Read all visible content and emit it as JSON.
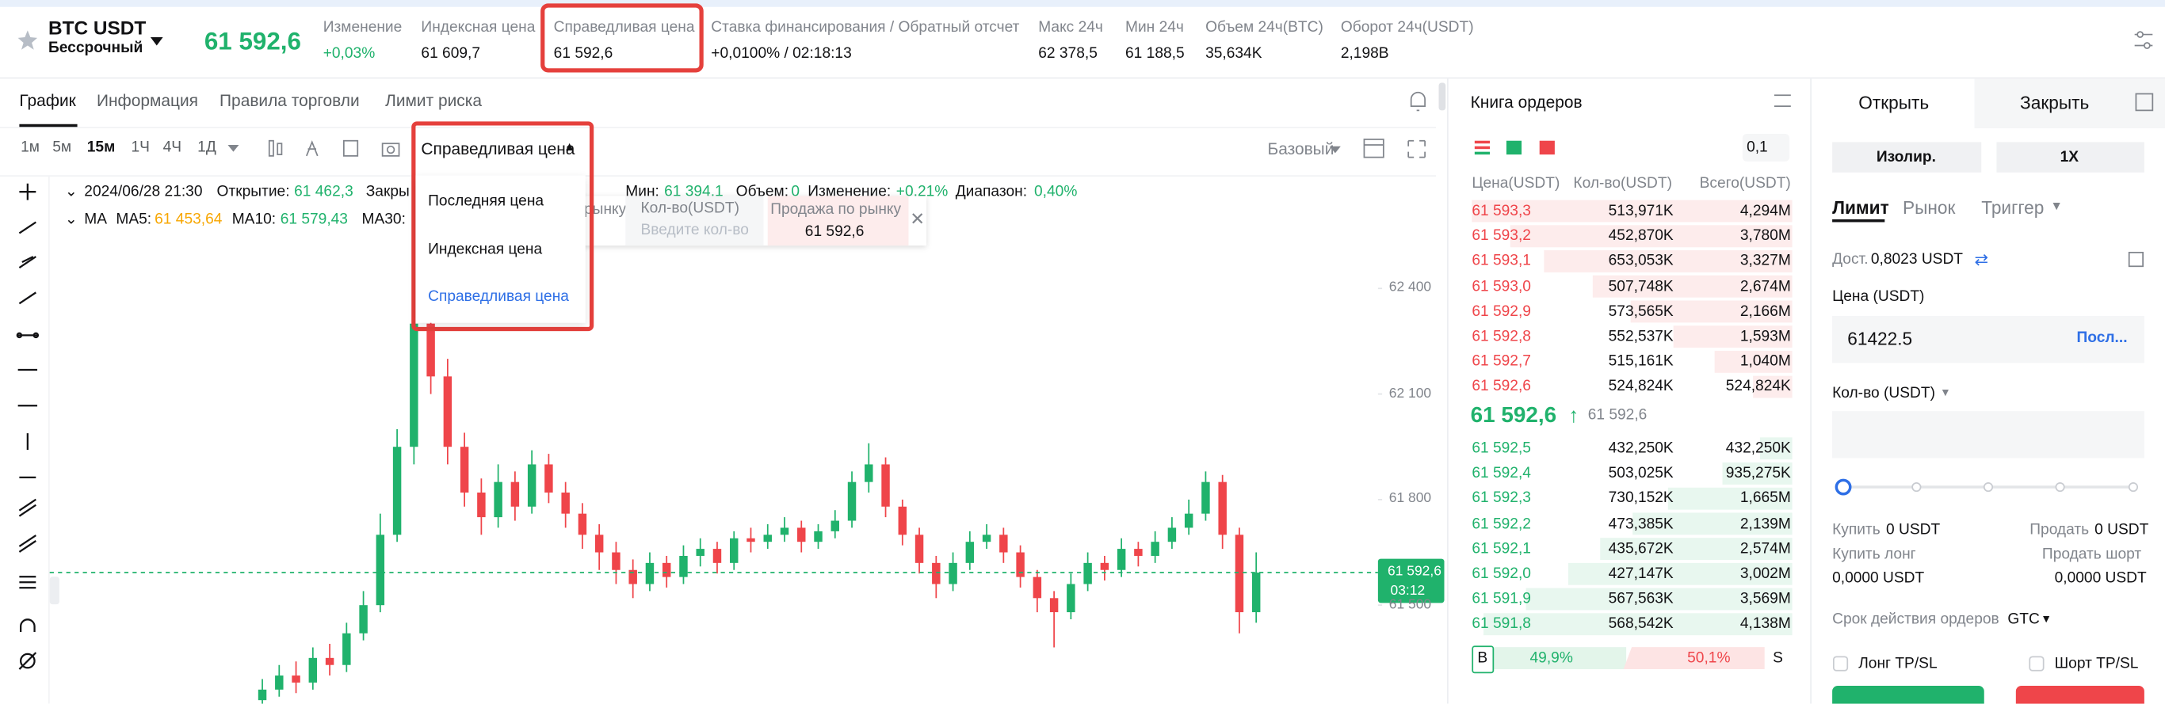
{
  "header": {
    "symbol": "BTC USDT",
    "contract": "Бессрочный",
    "last_price": "61 592,6",
    "stats": [
      {
        "label": "Изменение",
        "value": "+0,03%"
      },
      {
        "label": "Индексная цена",
        "value": "61 609,7"
      },
      {
        "label": "Справедливая цена",
        "value": "61 592,6"
      },
      {
        "label": "Ставка финансирования / Обратный отсчет",
        "value": "+0,0100% / 02:18:13"
      },
      {
        "label": "Макс 24ч",
        "value": "62 378,5"
      },
      {
        "label": "Мин 24ч",
        "value": "61 188,5"
      },
      {
        "label": "Объем 24ч(BTC)",
        "value": "35,634K"
      },
      {
        "label": "Оборот 24ч(USDT)",
        "value": "2,198B"
      }
    ]
  },
  "tabs": [
    "График",
    "Информация",
    "Правила торговли",
    "Лимит риска"
  ],
  "intervals": [
    "1м",
    "5м",
    "15м",
    "1Ч",
    "4Ч",
    "1Д"
  ],
  "price_type": {
    "selected": "Справедливая цена",
    "options": [
      "Последняя цена",
      "Индексная цена",
      "Справедливая цена"
    ]
  },
  "view": "Базовый",
  "candle_info": {
    "time": "2024/06/28 21:30",
    "open_label": "Открытие:",
    "open": "61 462,3",
    "close_label": "Закры",
    "low_label": "Мин:",
    "low": "61 394,1",
    "volume_label": "Объем:",
    "volume": "0",
    "change_label": "Изменение:",
    "change": "+0,21%",
    "range_label": "Диапазон:",
    "range": "0,40%"
  },
  "ma": {
    "label": "MA",
    "items": [
      {
        "label": "MA5:",
        "value": "61 453,64"
      },
      {
        "label": "MA10:",
        "value": "61 579,43"
      },
      {
        "label": "MA30:"
      }
    ]
  },
  "quick_order": {
    "market_partial": "рынку",
    "qty_label": "Кол-во(USDT)",
    "qty_placeholder": "Введите кол-во",
    "sell_label": "Продажа по рынку",
    "sell_price": "61 592,6"
  },
  "chart": {
    "ylim": [
      61220,
      62710
    ],
    "yticks": [
      {
        "value": 62400,
        "label": "62 400"
      },
      {
        "value": 62100,
        "label": "62 100"
      },
      {
        "value": 61800,
        "label": "61 800"
      },
      {
        "value": 61500,
        "label": "61 500"
      }
    ],
    "candles": [
      [
        61230,
        61290,
        61200,
        61260
      ],
      [
        61260,
        61330,
        61240,
        61300
      ],
      [
        61300,
        61340,
        61250,
        61280
      ],
      [
        61280,
        61380,
        61260,
        61350
      ],
      [
        61350,
        61390,
        61300,
        61330
      ],
      [
        61330,
        61450,
        61310,
        61420
      ],
      [
        61420,
        61540,
        61400,
        61500
      ],
      [
        61500,
        61760,
        61480,
        61700
      ],
      [
        61700,
        62000,
        61680,
        61950
      ],
      [
        61950,
        62440,
        61900,
        62300
      ],
      [
        62300,
        62380,
        62100,
        62150
      ],
      [
        62150,
        62200,
        61900,
        61950
      ],
      [
        61950,
        61990,
        61780,
        61820
      ],
      [
        61820,
        61860,
        61700,
        61750
      ],
      [
        61750,
        61900,
        61720,
        61850
      ],
      [
        61850,
        61880,
        61740,
        61780
      ],
      [
        61780,
        61940,
        61760,
        61900
      ],
      [
        61900,
        61930,
        61790,
        61820
      ],
      [
        61820,
        61850,
        61720,
        61760
      ],
      [
        61760,
        61790,
        61660,
        61700
      ],
      [
        61700,
        61730,
        61600,
        61650
      ],
      [
        61650,
        61680,
        61560,
        61600
      ],
      [
        61600,
        61630,
        61520,
        61560
      ],
      [
        61560,
        61650,
        61540,
        61620
      ],
      [
        61620,
        61640,
        61550,
        61580
      ],
      [
        61580,
        61670,
        61560,
        61640
      ],
      [
        61640,
        61690,
        61610,
        61660
      ],
      [
        61660,
        61680,
        61590,
        61620
      ],
      [
        61620,
        61710,
        61600,
        61690
      ],
      [
        61690,
        61720,
        61650,
        61680
      ],
      [
        61680,
        61730,
        61660,
        61700
      ],
      [
        61700,
        61750,
        61680,
        61720
      ],
      [
        61720,
        61740,
        61650,
        61680
      ],
      [
        61680,
        61730,
        61660,
        61710
      ],
      [
        61710,
        61770,
        61690,
        61740
      ],
      [
        61740,
        61880,
        61720,
        61850
      ],
      [
        61850,
        61960,
        61820,
        61900
      ],
      [
        61900,
        61920,
        61750,
        61780
      ],
      [
        61780,
        61800,
        61670,
        61700
      ],
      [
        61700,
        61720,
        61590,
        61620
      ],
      [
        61620,
        61640,
        61520,
        61560
      ],
      [
        61560,
        61650,
        61540,
        61620
      ],
      [
        61620,
        61710,
        61600,
        61680
      ],
      [
        61680,
        61730,
        61660,
        61700
      ],
      [
        61700,
        61720,
        61620,
        61650
      ],
      [
        61650,
        61670,
        61550,
        61580
      ],
      [
        61580,
        61600,
        61480,
        61520
      ],
      [
        61520,
        61540,
        61380,
        61480
      ],
      [
        61480,
        61590,
        61460,
        61560
      ],
      [
        61560,
        61650,
        61540,
        61620
      ],
      [
        61620,
        61640,
        61570,
        61600
      ],
      [
        61600,
        61690,
        61580,
        61660
      ],
      [
        61660,
        61680,
        61610,
        61640
      ],
      [
        61640,
        61710,
        61620,
        61680
      ],
      [
        61680,
        61750,
        61660,
        61720
      ],
      [
        61720,
        61800,
        61700,
        61760
      ],
      [
        61760,
        61880,
        61740,
        61850
      ],
      [
        61850,
        61870,
        61660,
        61700
      ],
      [
        61700,
        61720,
        61420,
        61480
      ],
      [
        61480,
        61650,
        61450,
        61592.6
      ]
    ],
    "last_price_tag": "61 592,6",
    "countdown": "03:12"
  },
  "order_book": {
    "title": "Книга ордеров",
    "precision": "0,1",
    "columns": [
      "Цена(USDT)",
      "Кол-во(USDT)",
      "Всего(USDT)"
    ],
    "asks": [
      [
        "61 593,3",
        "513,971K",
        "4,294M"
      ],
      [
        "61 593,2",
        "452,870K",
        "3,780M"
      ],
      [
        "61 593,1",
        "653,053K",
        "3,327M"
      ],
      [
        "61 593,0",
        "507,748K",
        "2,674M"
      ],
      [
        "61 592,9",
        "573,565K",
        "2,166M"
      ],
      [
        "61 592,8",
        "552,537K",
        "1,593M"
      ],
      [
        "61 592,7",
        "515,161K",
        "1,040M"
      ],
      [
        "61 592,6",
        "524,824K",
        "524,824K"
      ]
    ],
    "mid_price": "61 592,6",
    "mark_price": "61 592,6",
    "bids": [
      [
        "61 592,5",
        "432,250K",
        "432,250K"
      ],
      [
        "61 592,4",
        "503,025K",
        "935,275K"
      ],
      [
        "61 592,3",
        "730,152K",
        "1,665M"
      ],
      [
        "61 592,2",
        "473,385K",
        "2,139M"
      ],
      [
        "61 592,1",
        "435,672K",
        "2,574M"
      ],
      [
        "61 592,0",
        "427,147K",
        "3,002M"
      ],
      [
        "61 591,9",
        "567,563K",
        "3,569M"
      ],
      [
        "61 591,8",
        "568,542K",
        "4,138M"
      ]
    ],
    "buy_tag": "B",
    "buy_ratio": "49,9%",
    "sell_ratio": "50,1%",
    "sell_tag": "S"
  },
  "order_form": {
    "open_tab": "Открыть",
    "close_tab": "Закрыть",
    "margin": "Изолир.",
    "leverage": "1X",
    "types": [
      "Лимит",
      "Рынок",
      "Триггер"
    ],
    "available_label": "Дост.",
    "available": "0,8023 USDT",
    "price_label": "Цена (USDT)",
    "price_value": "61422.5",
    "price_suffix": "Посл...",
    "qty_label": "Кол-во (USDT)",
    "buy_label": "Купить",
    "buy_value": "0 USDT",
    "sell_label": "Продать",
    "sell_value": "0 USDT",
    "long_label": "Купить лонг",
    "long_value": "0,0000 USDT",
    "short_label": "Продать шорт",
    "short_value": "0,0000 USDT",
    "tif_label": "Срок действия ордеров",
    "tif": "GTC",
    "long_tpsl": "Лонг TP/SL",
    "short_tpsl": "Шорт TP/SL"
  }
}
